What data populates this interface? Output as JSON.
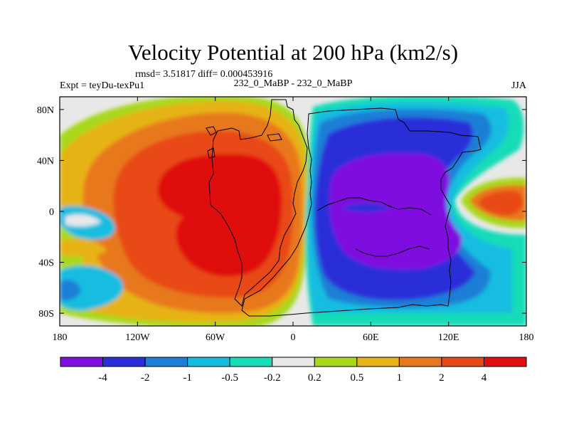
{
  "chart_data": {
    "type": "heatmap",
    "title": "Velocity Potential at 200 hPa (km2/s)",
    "stats": "rmsd= 3.51817 diff= 0.000453916",
    "left_label": "Expt = teyDu-texPu1",
    "center_label": "232_0_MaBP - 232_0_MaBP",
    "right_label": "JJA",
    "xlim": [
      -180,
      180
    ],
    "ylim": [
      -90,
      90
    ],
    "x_ticks": [
      {
        "value": -180,
        "label": "180"
      },
      {
        "value": -120,
        "label": "120W"
      },
      {
        "value": -60,
        "label": "60W"
      },
      {
        "value": 0,
        "label": "0"
      },
      {
        "value": 60,
        "label": "60E"
      },
      {
        "value": 120,
        "label": "120E"
      },
      {
        "value": 180,
        "label": "180"
      }
    ],
    "y_ticks": [
      {
        "value": 80,
        "label": "80N"
      },
      {
        "value": 40,
        "label": "40N"
      },
      {
        "value": 0,
        "label": "0"
      },
      {
        "value": -40,
        "label": "40S"
      },
      {
        "value": -80,
        "label": "80S"
      }
    ],
    "levels": [
      "-4",
      "-2",
      "-1",
      "-0.5",
      "-0.2",
      "0.2",
      "0.5",
      "1",
      "2",
      "4"
    ],
    "colors": [
      "#7f10e0",
      "#2b2fd9",
      "#1f7fd6",
      "#13bde0",
      "#17dcb8",
      "#e8e8e8",
      "#a8d81c",
      "#e6b318",
      "#e8781c",
      "#e84a14",
      "#e01010"
    ],
    "features": [
      {
        "name": "western-hemisphere-positive-max",
        "lon": -45,
        "lat": -5,
        "peak": "> 4"
      },
      {
        "name": "eastern-hemisphere-negative-min",
        "lon": 65,
        "lat": 0,
        "peak": "< -4"
      },
      {
        "name": "central-pacific-positive-cell",
        "lon": 165,
        "lat": 5,
        "peak": "2 to 4"
      }
    ]
  }
}
